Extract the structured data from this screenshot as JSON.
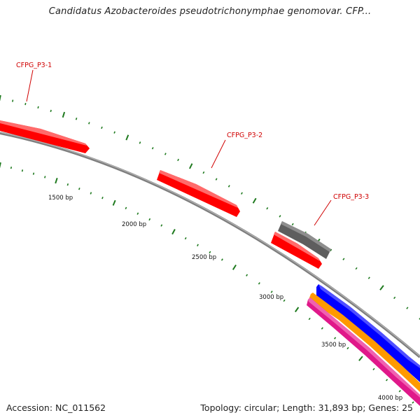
{
  "title": "Candidatus Azobacteroides pseudotrichonymphae genomovar. CFP...",
  "gene_labels": [
    "CFPG_P3-1",
    "CFPG_P3-2",
    "CFPG_P3-3"
  ],
  "ticks": [
    {
      "label": "1500 bp"
    },
    {
      "label": "2000 bp"
    },
    {
      "label": "2500 bp"
    },
    {
      "label": "3000 bp"
    },
    {
      "label": "3500 bp"
    },
    {
      "label": "4000 bp"
    }
  ],
  "footer": {
    "accession": "Accession: NC_011562",
    "topology": "Topology: circular; Length: 31,893 bp; Genes: 25"
  },
  "colors": {
    "backbone": "#8a8a8a",
    "gene_forward": "#ff0000",
    "gene_gray": "#5e5e5e",
    "gene_blue": "#0000ff",
    "gene_orange": "#ff9900",
    "gene_pink": "#e0188a",
    "tick": "#1f7a1f",
    "label": "#d00000"
  }
}
